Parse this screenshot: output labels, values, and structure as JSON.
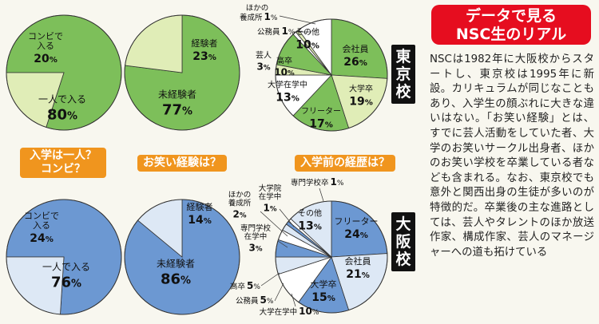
{
  "header": {
    "title_line1": "データで見る",
    "title_line2": "NSC生のリアル"
  },
  "body_text": "NSCは1982年に大阪校からスタートし、東京校は1995年に新設。カリキュラムが同じなこともあり、入学生の顔ぶれに大きな違いはない。「お笑い経験」とは、すでに芸人活動をしていた者、大学のお笑いサークル出身者、ほかのお笑い学校を卒業している者なども含まれる。なお、東京校でも意外と関西出身の生徒が多いのが特徴的だ。卒業後の主な進路としては、芸人やタレントのほか放送作家、構成作家、芸人のマネージャーへの道も拓けている",
  "campus_labels": {
    "tokyo": "東京校",
    "osaka": "大阪校"
  },
  "section_labels": {
    "enrollment_line1": "入学は一人？",
    "enrollment_line2": "コンビ？",
    "experience": "お笑い経験は？",
    "background": "入学前の経歴は？"
  },
  "colors": {
    "tokyo_main": "#7dbf5a",
    "tokyo_light": "#e0edb7",
    "osaka_main": "#6c98d2",
    "osaka_light": "#dde8f5",
    "white": "#ffffff",
    "title_red": "#e60d1f",
    "label_orange": "#f0951e"
  },
  "chart_data": [
    {
      "type": "pie",
      "id": "tokyo-enrollment",
      "campus": "東京校",
      "slices": [
        {
          "label": "一人で入る",
          "value": 80,
          "color_key": "tokyo_main"
        },
        {
          "label": "コンビで入る",
          "value": 20,
          "color_key": "tokyo_light"
        }
      ]
    },
    {
      "type": "pie",
      "id": "tokyo-experience",
      "campus": "東京校",
      "slices": [
        {
          "label": "未経験者",
          "value": 77,
          "color_key": "tokyo_main"
        },
        {
          "label": "経験者",
          "value": 23,
          "color_key": "tokyo_light"
        }
      ]
    },
    {
      "type": "pie",
      "id": "tokyo-background",
      "campus": "東京校",
      "slices": [
        {
          "label": "会社員",
          "value": 26,
          "color_key": "tokyo_main"
        },
        {
          "label": "大学卒",
          "value": 19,
          "color_key": "tokyo_light"
        },
        {
          "label": "フリーター",
          "value": 17,
          "color_key": "tokyo_main"
        },
        {
          "label": "大学在学中",
          "value": 13,
          "color_key": "white"
        },
        {
          "label": "芸人",
          "value": 3,
          "color_key": "tokyo_light"
        },
        {
          "label": "高卒",
          "value": 10,
          "color_key": "tokyo_main"
        },
        {
          "label": "公務員",
          "value": 1,
          "color_key": "white"
        },
        {
          "label": "ほかの養成所",
          "value": 1,
          "color_key": "tokyo_light"
        },
        {
          "label": "その他",
          "value": 10,
          "color_key": "white"
        }
      ]
    },
    {
      "type": "pie",
      "id": "osaka-enrollment",
      "campus": "大阪校",
      "slices": [
        {
          "label": "一人で入る",
          "value": 76,
          "color_key": "osaka_main"
        },
        {
          "label": "コンビで入る",
          "value": 24,
          "color_key": "osaka_light"
        }
      ]
    },
    {
      "type": "pie",
      "id": "osaka-experience",
      "campus": "大阪校",
      "slices": [
        {
          "label": "未経験者",
          "value": 86,
          "color_key": "osaka_main"
        },
        {
          "label": "経験者",
          "value": 14,
          "color_key": "osaka_light"
        }
      ]
    },
    {
      "type": "pie",
      "id": "osaka-background",
      "campus": "大阪校",
      "slices": [
        {
          "label": "フリーター",
          "value": 24,
          "color_key": "osaka_main"
        },
        {
          "label": "会社員",
          "value": 21,
          "color_key": "osaka_light"
        },
        {
          "label": "大学卒",
          "value": 15,
          "color_key": "osaka_main"
        },
        {
          "label": "大学在学中",
          "value": 10,
          "color_key": "white"
        },
        {
          "label": "公務員",
          "value": 5,
          "color_key": "osaka_light"
        },
        {
          "label": "高卒",
          "value": 5,
          "color_key": "osaka_main"
        },
        {
          "label": "専門学校在学中",
          "value": 3,
          "color_key": "white"
        },
        {
          "label": "ほかの養成所",
          "value": 2,
          "color_key": "osaka_light"
        },
        {
          "label": "大学院在学中",
          "value": 1,
          "color_key": "osaka_main"
        },
        {
          "label": "専門学校卒",
          "value": 1,
          "color_key": "white"
        },
        {
          "label": "その他",
          "value": 13,
          "color_key": "osaka_light"
        }
      ]
    }
  ]
}
